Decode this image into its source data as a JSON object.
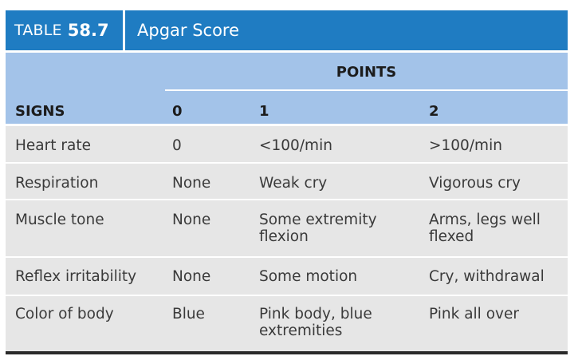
{
  "table": {
    "label": "TABLE",
    "number": "58.7",
    "title": "Apgar Score",
    "points_header": "POINTS",
    "columns": [
      "SIGNS",
      "0",
      "1",
      "2"
    ],
    "rows": [
      {
        "sign": "Heart rate",
        "p0": "0",
        "p1": "<100/min",
        "p2": ">100/min"
      },
      {
        "sign": "Respiration",
        "p0": "None",
        "p1": "Weak cry",
        "p2": "Vigorous cry"
      },
      {
        "sign": "Muscle tone",
        "p0": "None",
        "p1": "Some extremity flexion",
        "p2": "Arms, legs well flexed"
      },
      {
        "sign": "Reflex irritability",
        "p0": "None",
        "p1": "Some motion",
        "p2": "Cry, withdrawal"
      },
      {
        "sign": "Color of body",
        "p0": "Blue",
        "p1": "Pink body, blue extremities",
        "p2": "Pink all over"
      }
    ]
  },
  "colors": {
    "title_bar": "#1f7cc2",
    "header_block": "#a3c3e9",
    "body_rows": "#e6e6e6",
    "bottom_rule": "#2a2a2a"
  }
}
